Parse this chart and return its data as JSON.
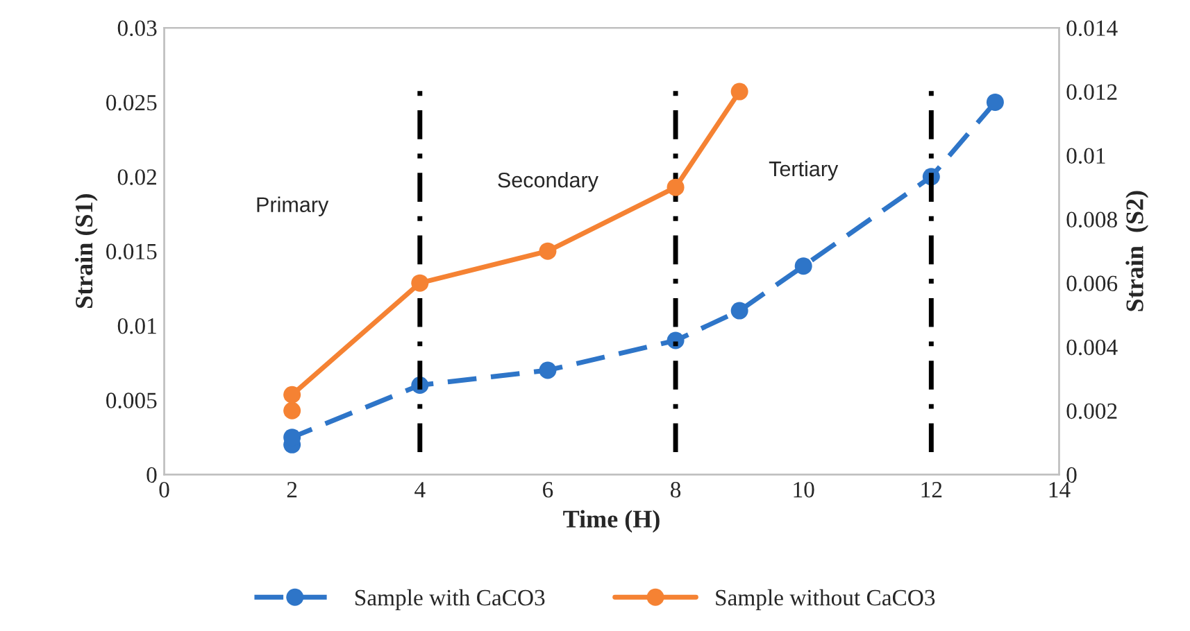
{
  "chart_data": {
    "type": "line",
    "xlabel": "Time (H)",
    "ylabel": "Strain (S1)",
    "y2label": "Strain  (S2)",
    "xlim": [
      0,
      14
    ],
    "xticks": [
      0,
      2,
      4,
      6,
      8,
      10,
      12,
      14
    ],
    "ylim": [
      0,
      0.03
    ],
    "yticks": [
      0,
      0.005,
      0.01,
      0.015,
      0.02,
      0.025,
      0.03
    ],
    "y2lim": [
      0,
      0.014
    ],
    "y2ticks": [
      0,
      0.002,
      0.004,
      0.006,
      0.008,
      0.01,
      0.012,
      0.014
    ],
    "series": [
      {
        "name": "Sample with CaCO3",
        "color": "#2e75c8",
        "line_style": "dashed",
        "x": [
          2,
          2,
          4,
          6,
          8,
          9,
          10,
          12,
          13
        ],
        "values": [
          0.002,
          0.0025,
          0.006,
          0.007,
          0.009,
          0.011,
          0.014,
          0.02,
          0.025
        ]
      },
      {
        "name": "Sample without CaCO3",
        "color": "#f58233",
        "line_style": "solid",
        "axis": "y2",
        "x": [
          2,
          2,
          4,
          6,
          8,
          9
        ],
        "values": [
          0.002,
          0.0025,
          0.006,
          0.007,
          0.009,
          0.012
        ]
      }
    ],
    "ref_lines": [
      {
        "axis": "x",
        "value": 4,
        "color": "#000000",
        "line_style": "dashdot"
      },
      {
        "axis": "x",
        "value": 8,
        "color": "#000000",
        "line_style": "dashdot"
      },
      {
        "axis": "x",
        "value": 12,
        "color": "#000000",
        "line_style": "dashdot"
      }
    ],
    "annotations": [
      "Primary",
      "Secondary",
      "Tertiary"
    ],
    "marker": "circle",
    "grid": false,
    "legend": "bottom"
  }
}
